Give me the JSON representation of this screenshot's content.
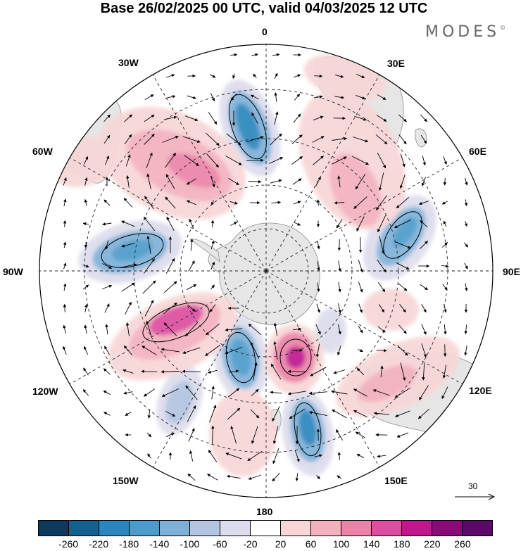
{
  "header": {
    "title": "Base 26/02/2025 00 UTC, valid 04/03/2025 12 UTC",
    "brand": "MODES",
    "brand_mark": "©"
  },
  "map": {
    "projection": "polar-stereographic-south",
    "longitude_labels": {
      "lon_0": "0",
      "lon_30e": "30E",
      "lon_60e": "60E",
      "lon_90e": "90E",
      "lon_120e": "120E",
      "lon_150e": "150E",
      "lon_180": "180",
      "lon_150w": "150W",
      "lon_120w": "120W",
      "lon_90w": "90W",
      "lon_60w": "60W",
      "lon_30w": "30W"
    },
    "land_color": "#e6e6e6",
    "anomaly_centers": [
      {
        "sign": "negative",
        "level": -220
      },
      {
        "sign": "negative",
        "level": -180
      },
      {
        "sign": "negative",
        "level": -180
      },
      {
        "sign": "negative",
        "level": -180
      },
      {
        "sign": "negative",
        "level": -140
      },
      {
        "sign": "negative",
        "level": -100
      },
      {
        "sign": "positive",
        "level": 140
      },
      {
        "sign": "positive",
        "level": 100
      },
      {
        "sign": "positive",
        "level": 180
      },
      {
        "sign": "positive",
        "level": 180
      },
      {
        "sign": "positive",
        "level": 100
      },
      {
        "sign": "positive",
        "level": 60
      }
    ],
    "reference_vector": {
      "label": "30"
    }
  },
  "colorbar": {
    "colors": [
      "#0d3a5c",
      "#15608f",
      "#2a86bd",
      "#4d9bcb",
      "#7fb1d8",
      "#b2c4e0",
      "#dcdcec",
      "#ffffff",
      "#f8d6d6",
      "#f3b0bd",
      "#eb82a8",
      "#dd4ea0",
      "#c0168e",
      "#8a0a78",
      "#5a0a66"
    ],
    "ticks": [
      "-260",
      "-220",
      "-180",
      "-140",
      "-100",
      "-60",
      "-20",
      "20",
      "60",
      "100",
      "140",
      "180",
      "220",
      "260"
    ]
  }
}
